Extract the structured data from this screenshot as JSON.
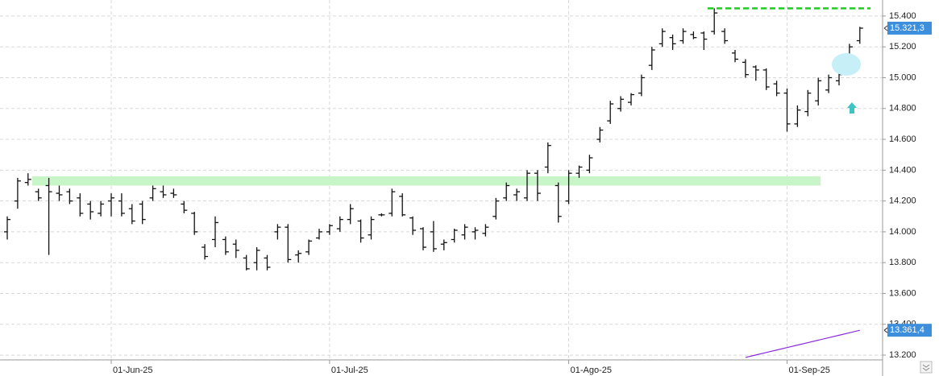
{
  "chart_data": {
    "type": "ohlc",
    "categories": [
      null,
      null,
      null,
      null,
      null,
      null,
      null,
      null,
      null,
      null,
      "01-Jun-25",
      null,
      null,
      null,
      null,
      null,
      null,
      null,
      null,
      null,
      null,
      null,
      null,
      null,
      null,
      null,
      null,
      null,
      null,
      null,
      null,
      "01-Jul-25",
      null,
      null,
      null,
      null,
      null,
      null,
      null,
      null,
      null,
      null,
      null,
      null,
      null,
      null,
      null,
      null,
      null,
      null,
      null,
      null,
      null,
      null,
      "01-Ago-25",
      null,
      null,
      null,
      null,
      null,
      null,
      null,
      null,
      null,
      null,
      null,
      null,
      null,
      null,
      null,
      null,
      null,
      null,
      null,
      null,
      "01-Sep-25",
      null,
      null,
      null,
      null,
      null,
      null,
      null
    ],
    "open": [
      14000,
      14200,
      14320,
      14260,
      14300,
      14250,
      14260,
      14220,
      14180,
      14120,
      14200,
      14200,
      14150,
      14180,
      14220,
      14260,
      14250,
      14180,
      14120,
      13900,
      13950,
      13950,
      13920,
      13830,
      13800,
      13830,
      14000,
      14030,
      13850,
      13870,
      13960,
      14000,
      14020,
      14080,
      14070,
      13980,
      14110,
      14120,
      14230,
      14090,
      14020,
      14000,
      13920,
      13950,
      13980,
      14000,
      13990,
      14100,
      14220,
      14240,
      14220,
      14380,
      14420,
      14300,
      14200,
      14380,
      14400,
      14600,
      14720,
      14800,
      14840,
      14900,
      15080,
      15220,
      15260,
      15240,
      15280,
      15290,
      15300,
      15300,
      15160,
      15100,
      15070,
      15050,
      14960,
      14900,
      14700,
      14780,
      14850,
      14920,
      14980,
      15120,
      15240
    ],
    "high": [
      14100,
      14350,
      14380,
      14280,
      14350,
      14300,
      14280,
      14250,
      14200,
      14200,
      14250,
      14250,
      14180,
      14200,
      14300,
      14300,
      14280,
      14200,
      14130,
      13920,
      14100,
      13970,
      13950,
      13850,
      13900,
      13850,
      14050,
      14050,
      13880,
      13950,
      14020,
      14050,
      14100,
      14180,
      14080,
      14100,
      14120,
      14280,
      14250,
      14100,
      14030,
      14070,
      13950,
      14020,
      14050,
      14030,
      14050,
      14220,
      14320,
      14280,
      14400,
      14400,
      14580,
      14320,
      14400,
      14430,
      14500,
      14680,
      14850,
      14880,
      14900,
      15020,
      15200,
      15320,
      15280,
      15320,
      15300,
      15300,
      15450,
      15320,
      15180,
      15120,
      15080,
      15060,
      14980,
      14930,
      14820,
      14920,
      15000,
      15020,
      15030,
      15220,
      15330
    ],
    "low": [
      13950,
      14150,
      14300,
      14200,
      13850,
      14200,
      14180,
      14100,
      14080,
      14100,
      14100,
      14100,
      14050,
      14050,
      14200,
      14220,
      14220,
      14120,
      13980,
      13820,
      13900,
      13850,
      13830,
      13750,
      13750,
      13750,
      13950,
      13800,
      13800,
      13850,
      13950,
      13980,
      14000,
      14050,
      13930,
      13950,
      14100,
      14100,
      14100,
      13980,
      13880,
      13870,
      13880,
      13930,
      13950,
      13950,
      13970,
      14080,
      14200,
      14200,
      14200,
      14200,
      14380,
      14060,
      14180,
      14350,
      14380,
      14580,
      14700,
      14780,
      14820,
      14880,
      15050,
      15200,
      15180,
      15220,
      15250,
      15180,
      15280,
      15220,
      15100,
      15000,
      14980,
      14920,
      14880,
      14650,
      14680,
      14750,
      14820,
      14900,
      14950,
      15080,
      15220
    ],
    "close": [
      14080,
      14330,
      14340,
      14220,
      14260,
      14240,
      14200,
      14120,
      14130,
      14180,
      14220,
      14120,
      14070,
      14080,
      14280,
      14240,
      14240,
      14140,
      14000,
      13840,
      14060,
      13870,
      13880,
      13760,
      13880,
      13770,
      14030,
      13820,
      13860,
      13940,
      14000,
      14040,
      14080,
      14150,
      13960,
      14080,
      14110,
      14260,
      14110,
      14010,
      13900,
      13890,
      13930,
      14010,
      14030,
      14010,
      14030,
      14200,
      14300,
      14260,
      14380,
      14250,
      14560,
      14100,
      14380,
      14420,
      14480,
      14660,
      14830,
      14860,
      14890,
      15000,
      15180,
      15300,
      15220,
      15300,
      15260,
      15250,
      15420,
      15240,
      15120,
      15020,
      15050,
      14940,
      14900,
      14700,
      14790,
      14900,
      14980,
      15000,
      15020,
      15200,
      15321.3
    ],
    "last_price": {
      "value": 15321.3,
      "label": "15.321,3"
    },
    "ma": {
      "color": "#8a2be2",
      "values": [
        null,
        null,
        null,
        null,
        null,
        null,
        null,
        null,
        null,
        null,
        null,
        null,
        null,
        null,
        null,
        null,
        null,
        null,
        null,
        null,
        null,
        null,
        null,
        null,
        null,
        null,
        null,
        null,
        null,
        null,
        null,
        null,
        null,
        null,
        null,
        null,
        null,
        null,
        null,
        null,
        null,
        null,
        null,
        null,
        null,
        null,
        null,
        null,
        null,
        null,
        null,
        null,
        null,
        null,
        null,
        null,
        null,
        null,
        null,
        null,
        null,
        null,
        null,
        null,
        null,
        null,
        null,
        null,
        null,
        null,
        null,
        13185,
        13201,
        13217,
        13233,
        13249,
        13265,
        13281,
        13297,
        13313,
        13329,
        13345,
        13361.4
      ],
      "last": {
        "value": 13361.4,
        "label": "13.361,4"
      }
    },
    "resistance": {
      "value": 15450,
      "color": "#22cc22"
    },
    "support_band": {
      "values": [
        14300,
        14360
      ],
      "color": "#c8f5c8"
    },
    "ylim": [
      13169,
      15504
    ],
    "yticks": [
      {
        "value": 13200,
        "label": "13.200"
      },
      {
        "value": 13400,
        "label": "13.400"
      },
      {
        "value": 13600,
        "label": "13.600"
      },
      {
        "value": 13800,
        "label": "13.800"
      },
      {
        "value": 14000,
        "label": "14.000"
      },
      {
        "value": 14200,
        "label": "14.200"
      },
      {
        "value": 14400,
        "label": "14.400"
      },
      {
        "value": 14600,
        "label": "14.600"
      },
      {
        "value": 14800,
        "label": "14.800"
      },
      {
        "value": 15000,
        "label": "15.000"
      },
      {
        "value": 15200,
        "label": "15.200"
      },
      {
        "value": 15400,
        "label": "15.400"
      }
    ],
    "grid": true
  }
}
